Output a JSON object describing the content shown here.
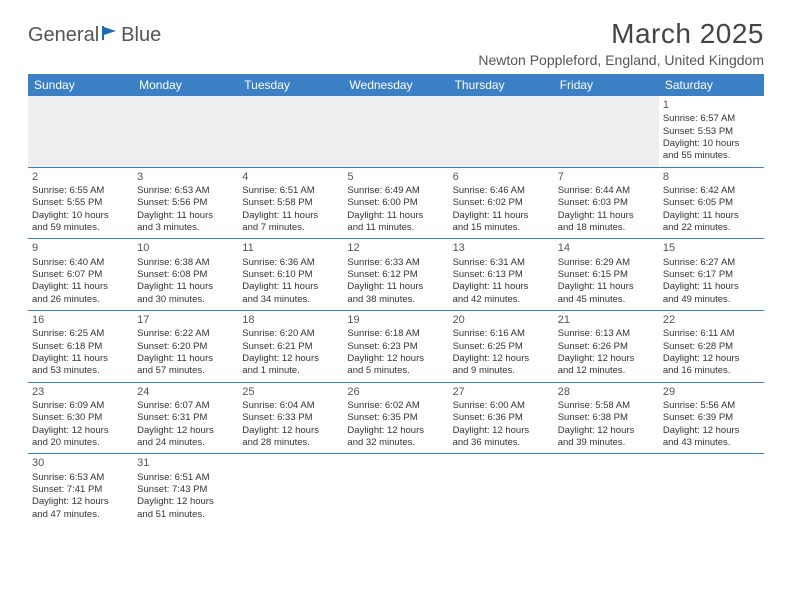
{
  "logo": {
    "text1": "General",
    "text2": "Blue"
  },
  "title": "March 2025",
  "location": "Newton Poppleford, England, United Kingdom",
  "colors": {
    "header_bg": "#3b7fc4",
    "header_text": "#ffffff",
    "border": "#3b7fc4",
    "blank_bg": "#eeeeee",
    "text": "#333333",
    "logo_blue": "#1e6bb8"
  },
  "daynames": [
    "Sunday",
    "Monday",
    "Tuesday",
    "Wednesday",
    "Thursday",
    "Friday",
    "Saturday"
  ],
  "weeks": [
    [
      null,
      null,
      null,
      null,
      null,
      null,
      {
        "n": "1",
        "sr": "Sunrise: 6:57 AM",
        "ss": "Sunset: 5:53 PM",
        "d1": "Daylight: 10 hours",
        "d2": "and 55 minutes."
      }
    ],
    [
      {
        "n": "2",
        "sr": "Sunrise: 6:55 AM",
        "ss": "Sunset: 5:55 PM",
        "d1": "Daylight: 10 hours",
        "d2": "and 59 minutes."
      },
      {
        "n": "3",
        "sr": "Sunrise: 6:53 AM",
        "ss": "Sunset: 5:56 PM",
        "d1": "Daylight: 11 hours",
        "d2": "and 3 minutes."
      },
      {
        "n": "4",
        "sr": "Sunrise: 6:51 AM",
        "ss": "Sunset: 5:58 PM",
        "d1": "Daylight: 11 hours",
        "d2": "and 7 minutes."
      },
      {
        "n": "5",
        "sr": "Sunrise: 6:49 AM",
        "ss": "Sunset: 6:00 PM",
        "d1": "Daylight: 11 hours",
        "d2": "and 11 minutes."
      },
      {
        "n": "6",
        "sr": "Sunrise: 6:46 AM",
        "ss": "Sunset: 6:02 PM",
        "d1": "Daylight: 11 hours",
        "d2": "and 15 minutes."
      },
      {
        "n": "7",
        "sr": "Sunrise: 6:44 AM",
        "ss": "Sunset: 6:03 PM",
        "d1": "Daylight: 11 hours",
        "d2": "and 18 minutes."
      },
      {
        "n": "8",
        "sr": "Sunrise: 6:42 AM",
        "ss": "Sunset: 6:05 PM",
        "d1": "Daylight: 11 hours",
        "d2": "and 22 minutes."
      }
    ],
    [
      {
        "n": "9",
        "sr": "Sunrise: 6:40 AM",
        "ss": "Sunset: 6:07 PM",
        "d1": "Daylight: 11 hours",
        "d2": "and 26 minutes."
      },
      {
        "n": "10",
        "sr": "Sunrise: 6:38 AM",
        "ss": "Sunset: 6:08 PM",
        "d1": "Daylight: 11 hours",
        "d2": "and 30 minutes."
      },
      {
        "n": "11",
        "sr": "Sunrise: 6:36 AM",
        "ss": "Sunset: 6:10 PM",
        "d1": "Daylight: 11 hours",
        "d2": "and 34 minutes."
      },
      {
        "n": "12",
        "sr": "Sunrise: 6:33 AM",
        "ss": "Sunset: 6:12 PM",
        "d1": "Daylight: 11 hours",
        "d2": "and 38 minutes."
      },
      {
        "n": "13",
        "sr": "Sunrise: 6:31 AM",
        "ss": "Sunset: 6:13 PM",
        "d1": "Daylight: 11 hours",
        "d2": "and 42 minutes."
      },
      {
        "n": "14",
        "sr": "Sunrise: 6:29 AM",
        "ss": "Sunset: 6:15 PM",
        "d1": "Daylight: 11 hours",
        "d2": "and 45 minutes."
      },
      {
        "n": "15",
        "sr": "Sunrise: 6:27 AM",
        "ss": "Sunset: 6:17 PM",
        "d1": "Daylight: 11 hours",
        "d2": "and 49 minutes."
      }
    ],
    [
      {
        "n": "16",
        "sr": "Sunrise: 6:25 AM",
        "ss": "Sunset: 6:18 PM",
        "d1": "Daylight: 11 hours",
        "d2": "and 53 minutes."
      },
      {
        "n": "17",
        "sr": "Sunrise: 6:22 AM",
        "ss": "Sunset: 6:20 PM",
        "d1": "Daylight: 11 hours",
        "d2": "and 57 minutes."
      },
      {
        "n": "18",
        "sr": "Sunrise: 6:20 AM",
        "ss": "Sunset: 6:21 PM",
        "d1": "Daylight: 12 hours",
        "d2": "and 1 minute."
      },
      {
        "n": "19",
        "sr": "Sunrise: 6:18 AM",
        "ss": "Sunset: 6:23 PM",
        "d1": "Daylight: 12 hours",
        "d2": "and 5 minutes."
      },
      {
        "n": "20",
        "sr": "Sunrise: 6:16 AM",
        "ss": "Sunset: 6:25 PM",
        "d1": "Daylight: 12 hours",
        "d2": "and 9 minutes."
      },
      {
        "n": "21",
        "sr": "Sunrise: 6:13 AM",
        "ss": "Sunset: 6:26 PM",
        "d1": "Daylight: 12 hours",
        "d2": "and 12 minutes."
      },
      {
        "n": "22",
        "sr": "Sunrise: 6:11 AM",
        "ss": "Sunset: 6:28 PM",
        "d1": "Daylight: 12 hours",
        "d2": "and 16 minutes."
      }
    ],
    [
      {
        "n": "23",
        "sr": "Sunrise: 6:09 AM",
        "ss": "Sunset: 6:30 PM",
        "d1": "Daylight: 12 hours",
        "d2": "and 20 minutes."
      },
      {
        "n": "24",
        "sr": "Sunrise: 6:07 AM",
        "ss": "Sunset: 6:31 PM",
        "d1": "Daylight: 12 hours",
        "d2": "and 24 minutes."
      },
      {
        "n": "25",
        "sr": "Sunrise: 6:04 AM",
        "ss": "Sunset: 6:33 PM",
        "d1": "Daylight: 12 hours",
        "d2": "and 28 minutes."
      },
      {
        "n": "26",
        "sr": "Sunrise: 6:02 AM",
        "ss": "Sunset: 6:35 PM",
        "d1": "Daylight: 12 hours",
        "d2": "and 32 minutes."
      },
      {
        "n": "27",
        "sr": "Sunrise: 6:00 AM",
        "ss": "Sunset: 6:36 PM",
        "d1": "Daylight: 12 hours",
        "d2": "and 36 minutes."
      },
      {
        "n": "28",
        "sr": "Sunrise: 5:58 AM",
        "ss": "Sunset: 6:38 PM",
        "d1": "Daylight: 12 hours",
        "d2": "and 39 minutes."
      },
      {
        "n": "29",
        "sr": "Sunrise: 5:56 AM",
        "ss": "Sunset: 6:39 PM",
        "d1": "Daylight: 12 hours",
        "d2": "and 43 minutes."
      }
    ],
    [
      {
        "n": "30",
        "sr": "Sunrise: 6:53 AM",
        "ss": "Sunset: 7:41 PM",
        "d1": "Daylight: 12 hours",
        "d2": "and 47 minutes."
      },
      {
        "n": "31",
        "sr": "Sunrise: 6:51 AM",
        "ss": "Sunset: 7:43 PM",
        "d1": "Daylight: 12 hours",
        "d2": "and 51 minutes."
      },
      null,
      null,
      null,
      null,
      null
    ]
  ]
}
